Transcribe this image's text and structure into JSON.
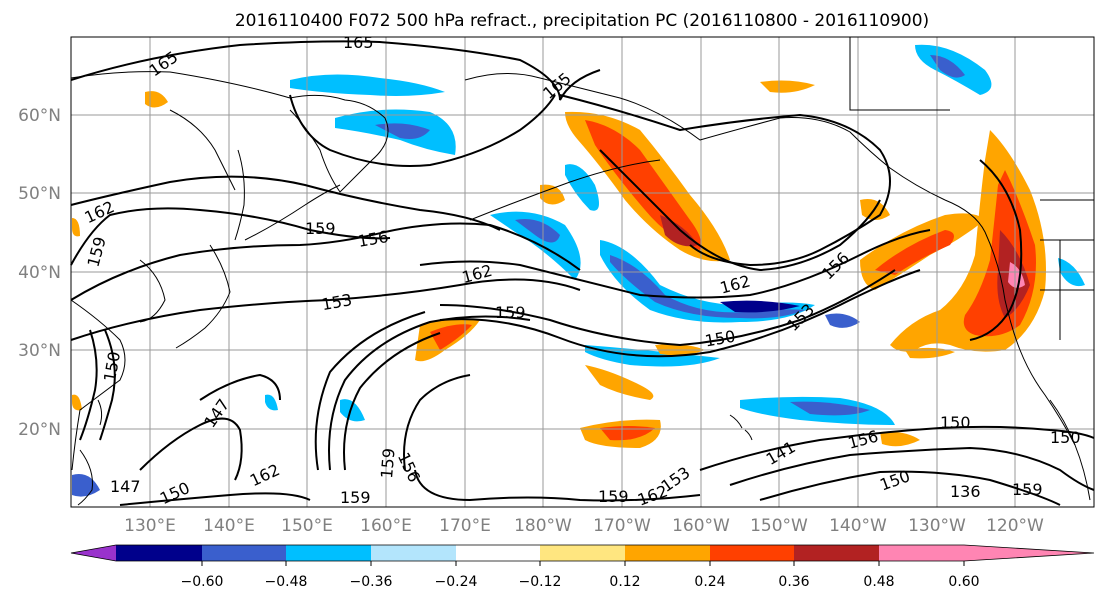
{
  "title": "2016110400 F072 500 hPa refract., precipitation PC (2016110800 - 2016110900)",
  "map": {
    "lat_labels": [
      "60°N",
      "50°N",
      "40°N",
      "30°N",
      "20°N"
    ],
    "lon_labels": [
      "130°E",
      "140°E",
      "150°E",
      "160°E",
      "170°E",
      "180°W",
      "170°W",
      "160°W",
      "150°W",
      "140°W",
      "130°W",
      "120°W"
    ],
    "contour_labels": [
      "165",
      "165",
      "165",
      "162",
      "159",
      "159",
      "156",
      "156",
      "162",
      "162",
      "153",
      "153",
      "159",
      "150",
      "150",
      "150",
      "147",
      "147",
      "150",
      "162",
      "159",
      "159",
      "156",
      "159",
      "162",
      "153",
      "141",
      "150",
      "136",
      "159",
      "150",
      "156"
    ],
    "colors": {
      "neg_060": "#9932cc",
      "neg_048": "#00008b",
      "neg_036": "#3a5fcd",
      "neg_024": "#00bfff",
      "neg_012": "#b3e5fc",
      "zero": "#ffffff",
      "pos_012": "#ffe680",
      "pos_024": "#ffa500",
      "pos_036": "#ff4000",
      "pos_048": "#b22222",
      "pos_060": "#ff85b3"
    }
  },
  "colorbar": {
    "ticks": [
      "−0.60",
      "−0.48",
      "−0.36",
      "−0.24",
      "−0.12",
      "0.12",
      "0.24",
      "0.36",
      "0.48",
      "0.60"
    ],
    "colors": [
      "#9932cc",
      "#00008b",
      "#3a5fcd",
      "#00bfff",
      "#b3e5fc",
      "#ffffff",
      "#ffe680",
      "#ffa500",
      "#ff4000",
      "#b22222",
      "#ff85b3"
    ]
  }
}
